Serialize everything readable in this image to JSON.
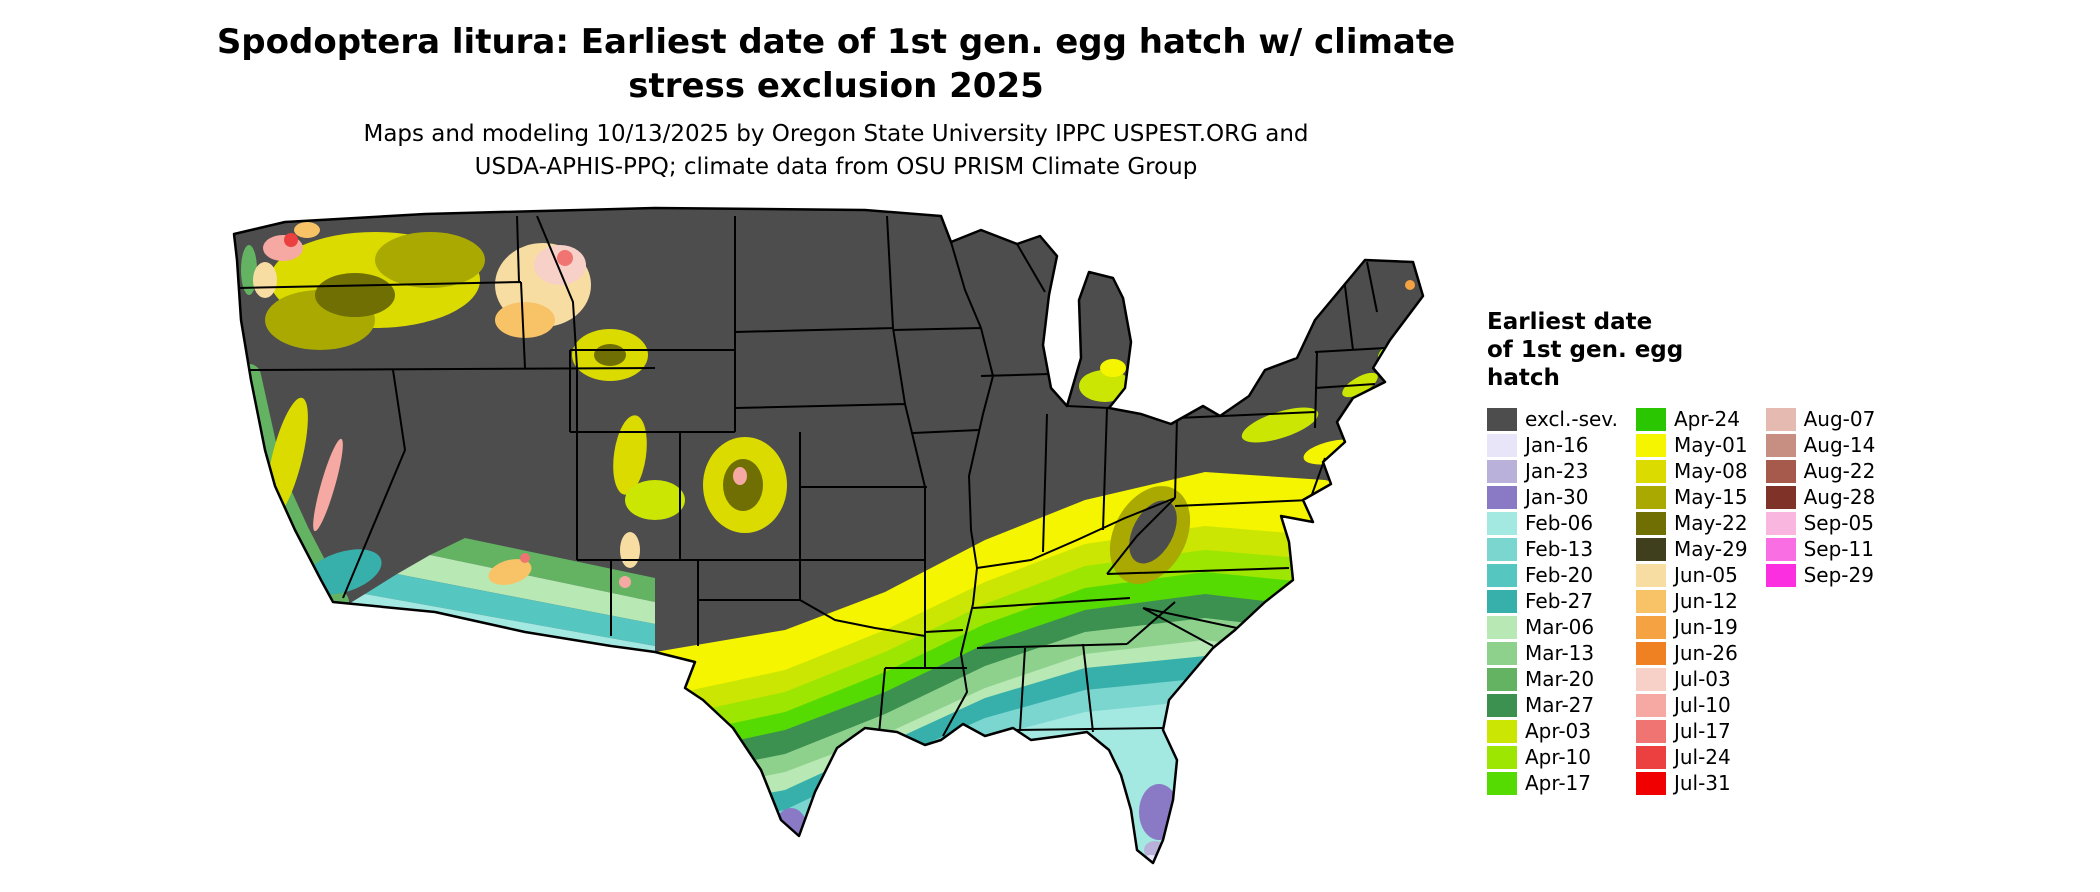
{
  "title": {
    "line1": "Spodoptera litura: Earliest date of 1st gen. egg hatch w/ climate",
    "line2": "stress exclusion 2025"
  },
  "subtitle": {
    "line1": "Maps and modeling 10/13/2025 by Oregon State University IPPC USPEST.ORG and",
    "line2": "USDA-APHIS-PPQ; climate data from OSU PRISM Climate Group"
  },
  "legend": {
    "title_lines": [
      "Earliest date",
      "of 1st gen. egg",
      "hatch"
    ],
    "columns": [
      {
        "items": [
          {
            "key": "excl",
            "label": "excl.-sev.",
            "color": "#4d4d4d"
          },
          {
            "key": "jan16",
            "label": "Jan-16",
            "color": "#e9e5f8"
          },
          {
            "key": "jan23",
            "label": "Jan-23",
            "color": "#b9b1d9"
          },
          {
            "key": "jan30",
            "label": "Jan-30",
            "color": "#8a79c4"
          },
          {
            "key": "feb06",
            "label": "Feb-06",
            "color": "#a3e8e1"
          },
          {
            "key": "feb13",
            "label": "Feb-13",
            "color": "#7cd6d0"
          },
          {
            "key": "feb20",
            "label": "Feb-20",
            "color": "#55c6c0"
          },
          {
            "key": "feb27",
            "label": "Feb-27",
            "color": "#37b0ac"
          },
          {
            "key": "mar06",
            "label": "Mar-06",
            "color": "#b8e8b4"
          },
          {
            "key": "mar13",
            "label": "Mar-13",
            "color": "#8ed18c"
          },
          {
            "key": "mar20",
            "label": "Mar-20",
            "color": "#63b363"
          },
          {
            "key": "mar27",
            "label": "Mar-27",
            "color": "#3d9150"
          },
          {
            "key": "apr03",
            "label": "Apr-03",
            "color": "#cbe602"
          },
          {
            "key": "apr10",
            "label": "Apr-10",
            "color": "#9ce602"
          },
          {
            "key": "apr17",
            "label": "Apr-17",
            "color": "#55da02"
          }
        ]
      },
      {
        "items": [
          {
            "key": "apr24",
            "label": "Apr-24",
            "color": "#2bc602"
          },
          {
            "key": "may01",
            "label": "May-01",
            "color": "#f5f500"
          },
          {
            "key": "may08",
            "label": "May-08",
            "color": "#dbdb00"
          },
          {
            "key": "may15",
            "label": "May-15",
            "color": "#a9a902"
          },
          {
            "key": "may22",
            "label": "May-22",
            "color": "#6f6f04"
          },
          {
            "key": "may29",
            "label": "May-29",
            "color": "#3f3f1d"
          },
          {
            "key": "jun05",
            "label": "Jun-05",
            "color": "#f8dda2"
          },
          {
            "key": "jun12",
            "label": "Jun-12",
            "color": "#f7c366"
          },
          {
            "key": "jun19",
            "label": "Jun-19",
            "color": "#f5a243"
          },
          {
            "key": "jun26",
            "label": "Jun-26",
            "color": "#ef8122"
          },
          {
            "key": "jul03",
            "label": "Jul-03",
            "color": "#f7d0c8"
          },
          {
            "key": "jul10",
            "label": "Jul-10",
            "color": "#f5a9a2"
          },
          {
            "key": "jul17",
            "label": "Jul-17",
            "color": "#f07471"
          },
          {
            "key": "jul24",
            "label": "Jul-24",
            "color": "#ec4040"
          },
          {
            "key": "jul31",
            "label": "Jul-31",
            "color": "#f00000"
          }
        ]
      },
      {
        "items": [
          {
            "key": "aug07",
            "label": "Aug-07",
            "color": "#e5bab0"
          },
          {
            "key": "aug14",
            "label": "Aug-14",
            "color": "#c78e82"
          },
          {
            "key": "aug22",
            "label": "Aug-22",
            "color": "#a55a4c"
          },
          {
            "key": "aug28",
            "label": "Aug-28",
            "color": "#7f3328"
          },
          {
            "key": "sep05",
            "label": "Sep-05",
            "color": "#f9b7df"
          },
          {
            "key": "sep11",
            "label": "Sep-11",
            "color": "#fa6ee4"
          },
          {
            "key": "sep29",
            "label": "Sep-29",
            "color": "#fb2ee0"
          }
        ]
      }
    ]
  },
  "map": {
    "outline_color": "#000000",
    "background_color": "#ffffff"
  }
}
